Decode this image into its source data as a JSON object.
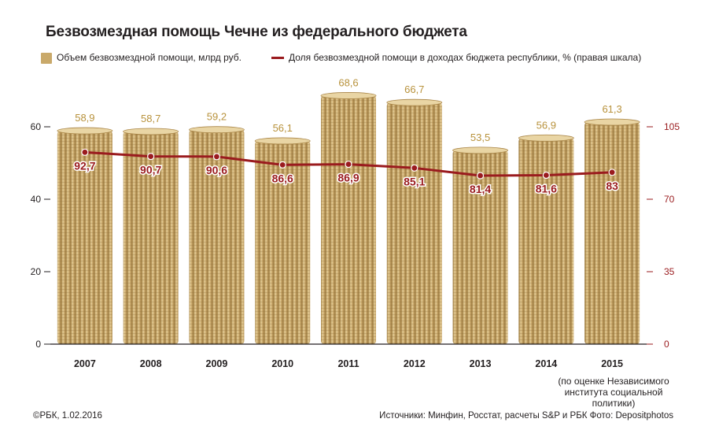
{
  "title": "Безвозмездная помощь Чечне из федерального бюджета",
  "legend": {
    "bar_label": "Объем безвозмездной помощи, млрд руб.",
    "line_label": "Доля безвозмездной помощи в доходах бюджета республики, % (правая шкала)"
  },
  "colors": {
    "bar": "#c9a96a",
    "bar_label": "#b8923c",
    "line": "#9a1b1e",
    "axis": "#231f20"
  },
  "chart_data": {
    "type": "bar",
    "categories": [
      "2007",
      "2008",
      "2009",
      "2010",
      "2011",
      "2012",
      "2013",
      "2014",
      "2015"
    ],
    "series": [
      {
        "name": "Объем безвозмездной помощи, млрд руб.",
        "type": "bar",
        "axis": "left",
        "values": [
          58.9,
          58.7,
          59.2,
          56.1,
          68.6,
          66.7,
          53.5,
          56.9,
          61.3
        ],
        "labels": [
          "58,9",
          "58,7",
          "59,2",
          "56,1",
          "68,6",
          "66,7",
          "53,5",
          "56,9",
          "61,3"
        ]
      },
      {
        "name": "Доля безвозмездной помощи в доходах бюджета республики, % (правая шкала)",
        "type": "line",
        "axis": "right",
        "values": [
          92.7,
          90.7,
          90.6,
          86.6,
          86.9,
          85.1,
          81.4,
          81.6,
          83
        ],
        "labels": [
          "92,7",
          "90,7",
          "90,6",
          "86,6",
          "86,9",
          "85,1",
          "81,4",
          "81,6",
          "83"
        ]
      }
    ],
    "left_axis": {
      "ylim": [
        0,
        60
      ],
      "ticks": [
        "0",
        "20",
        "40",
        "60"
      ],
      "tick_values": [
        0,
        20,
        40,
        60
      ]
    },
    "right_axis": {
      "ylim": [
        0,
        105
      ],
      "ticks": [
        "0",
        "35",
        "70",
        "105"
      ],
      "tick_values": [
        0,
        35,
        70,
        105
      ]
    },
    "legend_position": "top-left",
    "grid": false
  },
  "note": "(по оценке Независимого института социальной политики)",
  "footer": {
    "copyright": "©РБК, 1.02.2016",
    "sources": "Источники: Минфин, Росстат, расчеты S&P и РБК   Фото: Depositphotos"
  }
}
